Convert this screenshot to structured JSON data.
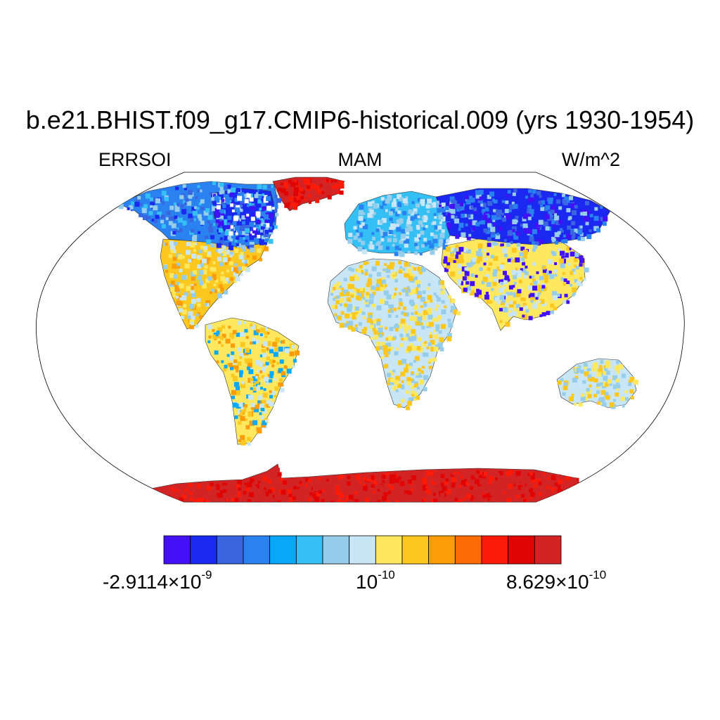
{
  "title": "b.e21.BHIST.f09_g17.CMIP6-historical.009 (yrs 1930-1954)",
  "variable": "ERRSOI",
  "season": "MAM",
  "units": "W/m^2",
  "projection": "Robinson",
  "colorbar": {
    "colors": [
      "#4410f5",
      "#1a28f0",
      "#3a65e0",
      "#2a82f0",
      "#0aa8f8",
      "#34c0f5",
      "#96cdea",
      "#c8e6f6",
      "#fde860",
      "#fcc820",
      "#fc9c08",
      "#fc6c04",
      "#fc1a08",
      "#e00404",
      "#d22424"
    ],
    "label_left_mantissa": "-2.9114",
    "label_left_exp": "-9",
    "label_mid_base": "10",
    "label_mid_exp": "-10",
    "label_right_mantissa": "8.629",
    "label_right_exp": "-10",
    "times": "×10"
  },
  "regions": {
    "north_america_north": {
      "name": "Northern North America",
      "color": "#2a82f0"
    },
    "canadian_shield": {
      "name": "Canadian Shield",
      "color": "#1a28f0"
    },
    "greenland": {
      "name": "Greenland",
      "color": "#d22424"
    },
    "north_america_south": {
      "name": "Southern North America",
      "color": "#fcc820"
    },
    "south_america": {
      "name": "South America",
      "color": "#fde860"
    },
    "europe": {
      "name": "Europe",
      "color": "#34c0f5"
    },
    "siberia": {
      "name": "Siberia",
      "color": "#1a28f0"
    },
    "asia_south": {
      "name": "Southern Asia",
      "color": "#fde860"
    },
    "africa": {
      "name": "Africa",
      "color": "#c8e6f6"
    },
    "australia": {
      "name": "Australia",
      "color": "#c8e6f6"
    },
    "antarctica": {
      "name": "Antarctica",
      "color": "#d22424"
    }
  }
}
